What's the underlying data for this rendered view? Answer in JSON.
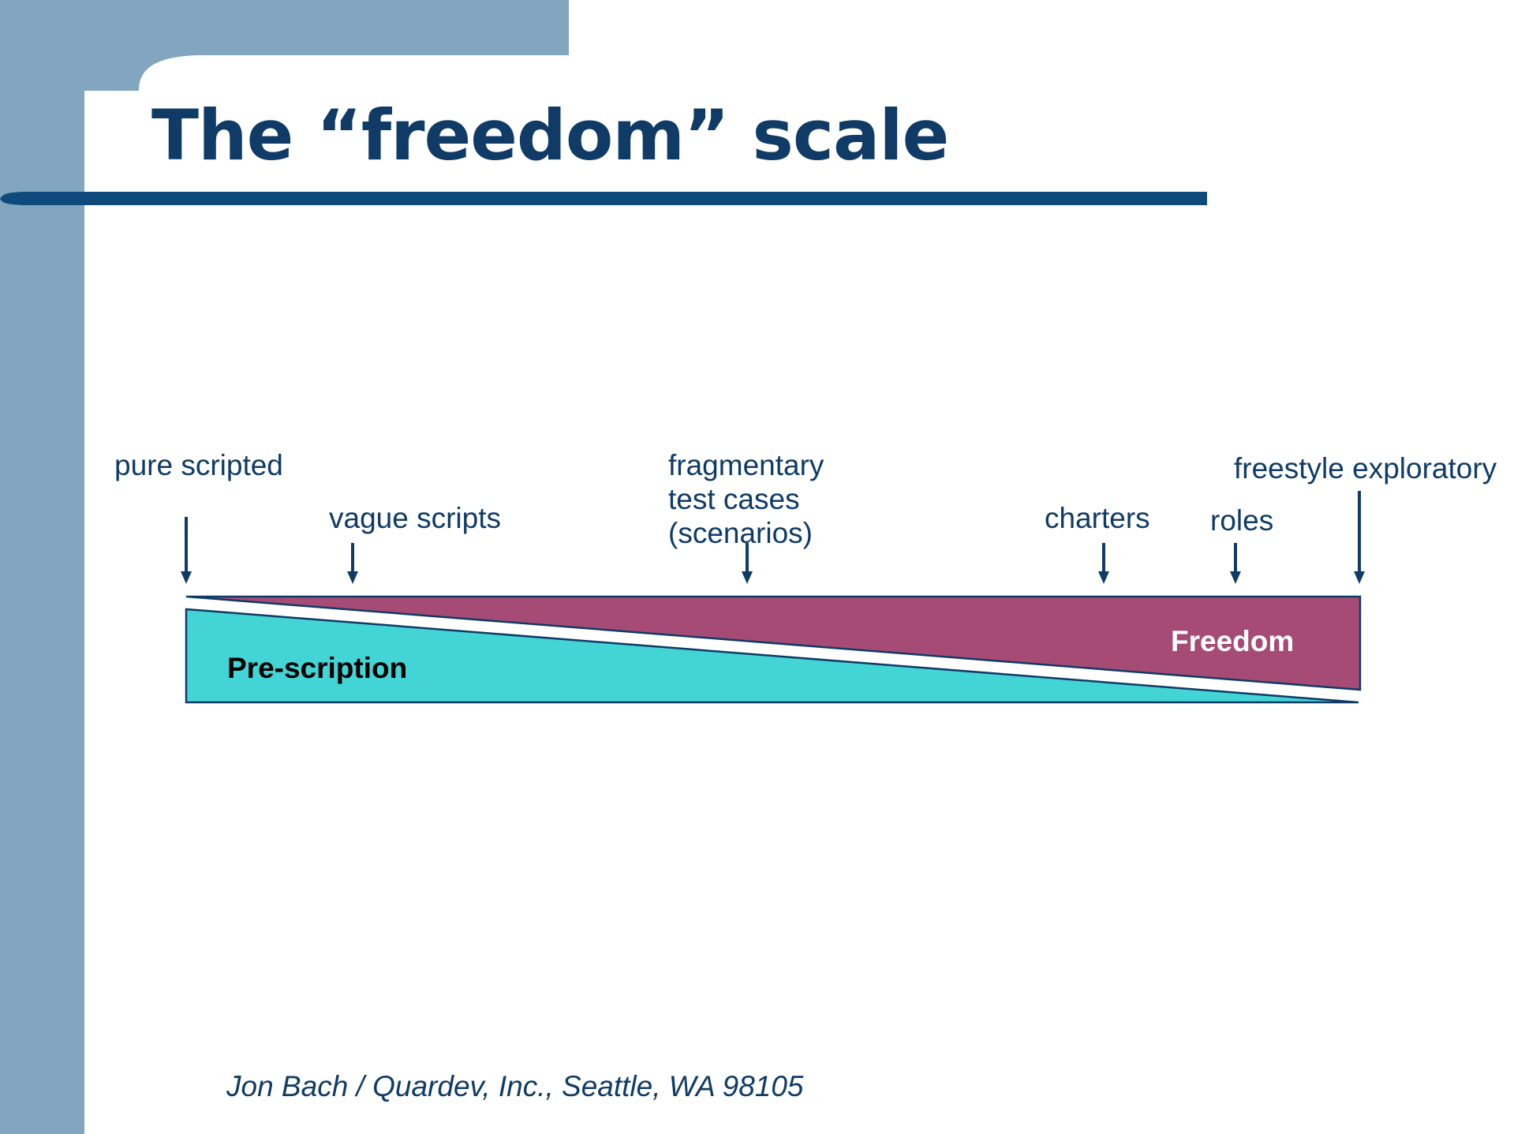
{
  "slide": {
    "title": "The “freedom” scale",
    "footer": "Jon Bach / Quardev, Inc., Seattle, WA  98105"
  },
  "scale": {
    "stages": [
      {
        "id": "pure-scripted",
        "label": "pure scripted"
      },
      {
        "id": "vague-scripts",
        "label": "vague scripts"
      },
      {
        "id": "fragmentary-test-cases",
        "label": "fragmentary\ntest cases\n(scenarios)"
      },
      {
        "id": "charters",
        "label": "charters"
      },
      {
        "id": "roles",
        "label": "roles"
      },
      {
        "id": "freestyle-exploratory",
        "label": "freestyle exploratory"
      }
    ],
    "prescription_label": "Pre-scription",
    "freedom_label": "Freedom"
  },
  "colors": {
    "sidebar": "#82a6bf",
    "title_text": "#0f3b66",
    "rule": "#0f4a7c",
    "arrows": "#0f3b66",
    "prescription_fill": "#43d5d6",
    "freedom_fill": "#a54b75",
    "freedom_text": "#ffffff",
    "prescription_text": "#000000"
  },
  "icons": {
    "stage_marker": "down-arrow-icon"
  }
}
